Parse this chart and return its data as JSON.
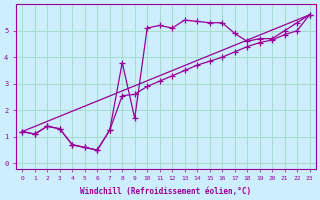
{
  "xlabel": "Windchill (Refroidissement éolien,°C)",
  "bg_color": "#cceeff",
  "line_color": "#990099",
  "grid_color": "#aaddcc",
  "series1_x": [
    0,
    1,
    2,
    3,
    4,
    5,
    6,
    7,
    8,
    9,
    10,
    11,
    12,
    13,
    14,
    15,
    16,
    17,
    18,
    19,
    20,
    21,
    22,
    23
  ],
  "series1_y": [
    1.2,
    1.1,
    1.4,
    1.3,
    0.7,
    0.6,
    0.5,
    1.25,
    3.8,
    1.7,
    5.1,
    5.2,
    5.1,
    5.4,
    5.35,
    5.3,
    5.3,
    4.9,
    4.6,
    4.7,
    4.7,
    5.0,
    5.3,
    5.6
  ],
  "series2_x": [
    0,
    1,
    2,
    3,
    4,
    5,
    6,
    7,
    8,
    9,
    10,
    11,
    12,
    13,
    14,
    15,
    16,
    17,
    18,
    19,
    20,
    21,
    22,
    23
  ],
  "series2_y": [
    1.2,
    1.1,
    1.4,
    1.3,
    0.7,
    0.6,
    0.5,
    1.25,
    2.55,
    2.6,
    2.9,
    3.1,
    3.3,
    3.5,
    3.7,
    3.85,
    4.0,
    4.2,
    4.4,
    4.55,
    4.65,
    4.85,
    5.0,
    5.6
  ],
  "series3_x": [
    0,
    23
  ],
  "series3_y": [
    1.2,
    5.6
  ],
  "xlim": [
    -0.5,
    23.5
  ],
  "ylim": [
    -0.2,
    6.0
  ],
  "xticks": [
    0,
    1,
    2,
    3,
    4,
    5,
    6,
    7,
    8,
    9,
    10,
    11,
    12,
    13,
    14,
    15,
    16,
    17,
    18,
    19,
    20,
    21,
    22,
    23
  ],
  "yticks": [
    0,
    1,
    2,
    3,
    4,
    5
  ]
}
